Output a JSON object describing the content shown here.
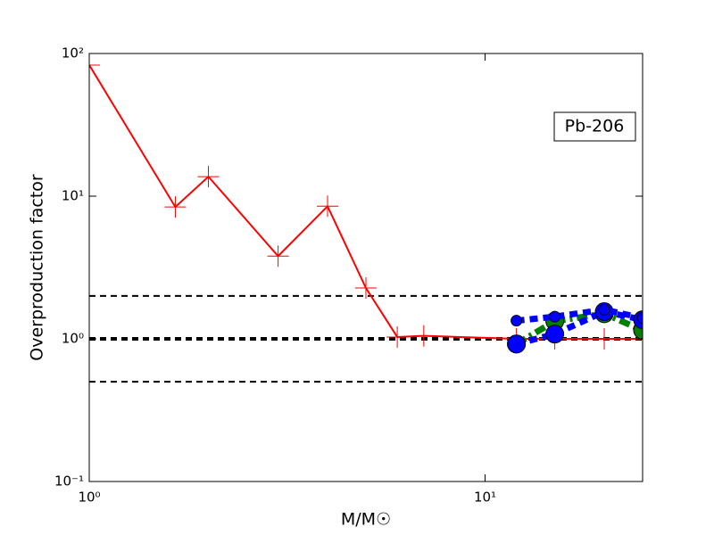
{
  "chart_data": {
    "type": "line",
    "log_x": true,
    "log_y": true,
    "xlabel": "M/M☉",
    "ylabel": "Overproduction factor",
    "annotation": "Pb-206",
    "xlim": [
      1,
      25
    ],
    "ylim": [
      0.1,
      100
    ],
    "xticks": [
      {
        "value": 1,
        "label": "10⁰"
      },
      {
        "value": 10,
        "label": "10¹"
      }
    ],
    "yticks": [
      {
        "value": 0.1,
        "label": "10⁻¹"
      },
      {
        "value": 1,
        "label": "10⁰"
      },
      {
        "value": 10,
        "label": "10¹"
      },
      {
        "value": 100,
        "label": "10²"
      }
    ],
    "hlines": [
      0.5,
      1,
      2
    ],
    "series": [
      {
        "color": "#ff0000",
        "style": "solid",
        "marker": "plus",
        "x": [
          1,
          1.65,
          2,
          3,
          4,
          5,
          6,
          7,
          12,
          15,
          20,
          25
        ],
        "values": [
          83,
          8.4,
          13.7,
          3.8,
          8.5,
          2.27,
          1.03,
          1.05,
          1.0,
          1.0,
          1.0,
          1.0
        ]
      },
      {
        "color": "#008000",
        "style": "dashdot",
        "marker": "big",
        "x": [
          12,
          15,
          20,
          25
        ],
        "values": [
          0.92,
          1.33,
          1.5,
          1.15
        ]
      },
      {
        "color": "#0000ff",
        "style": "dashed",
        "marker": "big",
        "x": [
          12,
          15,
          20,
          25
        ],
        "values": [
          0.92,
          1.08,
          1.55,
          1.36
        ]
      },
      {
        "color": "#0000ff",
        "style": "dashed",
        "marker": "small",
        "x": [
          12,
          15,
          20,
          25
        ],
        "values": [
          1.34,
          1.43,
          1.6,
          1.4
        ]
      }
    ]
  }
}
